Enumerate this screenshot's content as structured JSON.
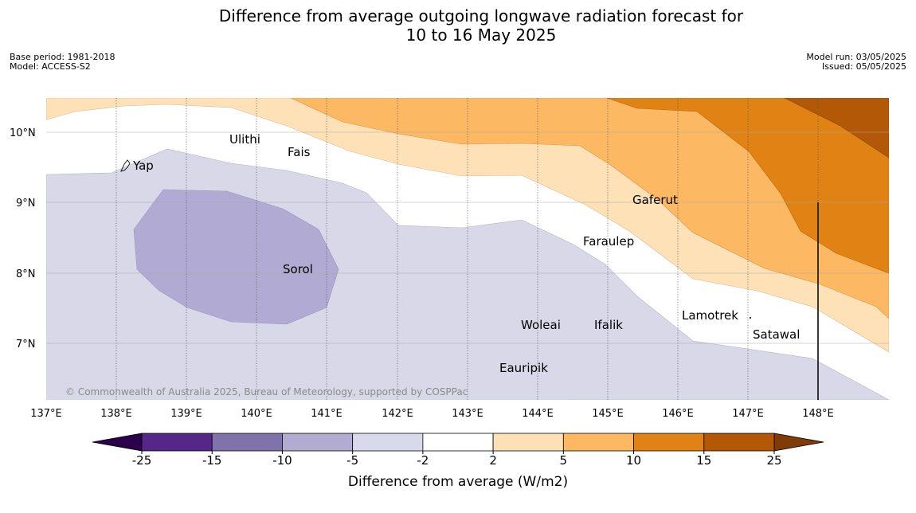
{
  "title_line1": "Difference from average outgoing longwave radiation forecast for",
  "title_line2": "10 to 16 May 2025",
  "meta_left": {
    "base_period": "Base period: 1981-2018",
    "model": "Model: ACCESS-S2"
  },
  "meta_right": {
    "model_run": "Model run: 03/05/2025",
    "issued": "Issued: 05/05/2025"
  },
  "map": {
    "lon_labels": [
      "137°E",
      "138°E",
      "139°E",
      "140°E",
      "141°E",
      "142°E",
      "143°E",
      "144°E",
      "145°E",
      "146°E",
      "147°E",
      "148°E"
    ],
    "lat_labels": [
      "10°N",
      "9°N",
      "8°N",
      "7°N"
    ],
    "places": {
      "yap": "Yap",
      "ulithi": "Ulithi",
      "fais": "Fais",
      "gaferut": "Gaferut",
      "faraulep": "Faraulep",
      "sorol": "Sorol",
      "woleai": "Woleai",
      "ifalik": "Ifalik",
      "lamotrek": "Lamotrek",
      "satawal": "Satawal",
      "eauripik": "Eauripik"
    },
    "credit": "© Commonwealth of Australia 2025, Bureau of Meteorology, supported by COSPPac",
    "colors": {
      "neg_5_2": "#d8d8e9",
      "neg_10_5": "#b1abd3",
      "pos_2_5": "#fee1b6",
      "pos_5_10": "#fdb863",
      "pos_10_15": "#e08214",
      "pos_15_25": "#b35806"
    }
  },
  "colorbar": {
    "ticks": [
      "-25",
      "-15",
      "-10",
      "-5",
      "-2",
      "2",
      "5",
      "10",
      "15",
      "25"
    ],
    "colors": [
      "#542788",
      "#8073ac",
      "#b2abd2",
      "#d8daeb",
      "#ffffff",
      "#fee0b6",
      "#fdb863",
      "#e08214",
      "#b35806"
    ],
    "low_extend_color": "#2d004b",
    "high_extend_color": "#7f3b08",
    "label": "Difference from average (W/m2)"
  }
}
